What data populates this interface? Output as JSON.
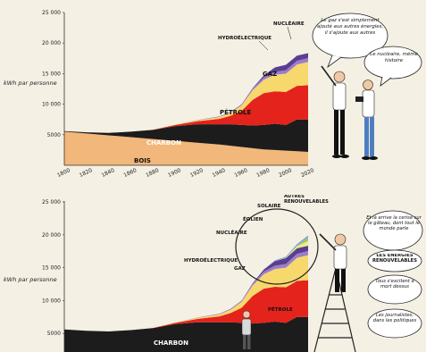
{
  "colors": {
    "background": "#f4f0e4",
    "bois": "#f2b77a",
    "charbon": "#1c1c1c",
    "petrole": "#e4231c",
    "gaz": "#f7d86c",
    "hydro": "#9b7ec9",
    "nucleaire": "#5a3e91",
    "eolien": "#f3ec8a",
    "solaire": "#a4c95a",
    "autres": "#7fa7d8"
  },
  "chart_data": [
    {
      "type": "area",
      "stacked": true,
      "xlabel": "",
      "ylabel": "kWh par personne",
      "ylim": [
        0,
        25000
      ],
      "xlim": [
        1800,
        2020
      ],
      "yticks": [
        5000,
        10000,
        15000,
        20000,
        25000
      ],
      "ytick_labels": [
        "5000",
        "10 000",
        "15 000",
        "20 000",
        "25 000"
      ],
      "xticks": [
        1800,
        1820,
        1840,
        1860,
        1880,
        1900,
        1920,
        1940,
        1960,
        1980,
        2000,
        2020
      ],
      "xtick_labels": [
        "1800",
        "1820",
        "1840",
        "1860",
        "1880",
        "1900",
        "1920",
        "1940",
        "1960",
        "1980",
        "2000",
        "2020"
      ],
      "x": [
        1800,
        1820,
        1840,
        1860,
        1880,
        1900,
        1920,
        1940,
        1950,
        1960,
        1970,
        1980,
        1990,
        2000,
        2010,
        2020
      ],
      "series": [
        {
          "name": "BOIS",
          "values": [
            5500,
            5200,
            4900,
            4600,
            4300,
            4000,
            3700,
            3400,
            3200,
            3000,
            2800,
            2600,
            2500,
            2400,
            2300,
            2200
          ]
        },
        {
          "name": "CHARBON",
          "values": [
            100,
            200,
            400,
            900,
            1500,
            2400,
            3000,
            3300,
            3500,
            3600,
            3700,
            4000,
            4300,
            4200,
            5200,
            5300
          ]
        },
        {
          "name": "PÉTROLE",
          "values": [
            0,
            0,
            0,
            0,
            20,
            200,
            500,
            900,
            1400,
            2300,
            4200,
            5200,
            5300,
            5400,
            5500,
            5600
          ]
        },
        {
          "name": "GAZ",
          "values": [
            0,
            0,
            0,
            0,
            0,
            50,
            150,
            300,
            500,
            900,
            1600,
            2200,
            2700,
            3000,
            3500,
            3800
          ]
        },
        {
          "name": "HYDROÉLECTRIQUE",
          "values": [
            0,
            0,
            0,
            0,
            0,
            0,
            50,
            100,
            150,
            200,
            300,
            400,
            500,
            550,
            600,
            650
          ]
        },
        {
          "name": "NUCLÉAIRE",
          "values": [
            0,
            0,
            0,
            0,
            0,
            0,
            0,
            0,
            0,
            0,
            50,
            300,
            700,
            900,
            850,
            800
          ]
        }
      ],
      "annotations": [
        "Le gaz s'est simplement ajouté aux autres énergies, il s'ajoute aux autres",
        "Le nucléaire, même histoire"
      ]
    },
    {
      "type": "area",
      "stacked": true,
      "xlabel": "",
      "ylabel": "kWh par personne",
      "ylim": [
        0,
        25000
      ],
      "yticks": [
        5000,
        10000,
        15000,
        20000,
        25000
      ],
      "ytick_labels": [
        "5000",
        "10 000",
        "15 000",
        "20 000",
        "25 000"
      ],
      "x": [
        1800,
        1820,
        1840,
        1860,
        1880,
        1900,
        1920,
        1940,
        1950,
        1960,
        1970,
        1980,
        1990,
        2000,
        2010,
        2020
      ],
      "series": [
        {
          "name": "CHARBON",
          "values": [
            5600,
            5400,
            5300,
            5500,
            5800,
            6400,
            6700,
            6700,
            6700,
            6600,
            6500,
            6600,
            6800,
            6600,
            7500,
            7500
          ]
        },
        {
          "name": "PÉTROLE",
          "values": [
            0,
            0,
            0,
            0,
            20,
            200,
            500,
            900,
            1400,
            2300,
            4200,
            5200,
            5300,
            5400,
            5500,
            5600
          ]
        },
        {
          "name": "GAZ",
          "values": [
            0,
            0,
            0,
            0,
            0,
            50,
            150,
            300,
            500,
            900,
            1600,
            2200,
            2700,
            3000,
            3500,
            3800
          ]
        },
        {
          "name": "HYDROÉLECTRIQUE",
          "values": [
            0,
            0,
            0,
            0,
            0,
            0,
            50,
            100,
            150,
            200,
            300,
            400,
            500,
            550,
            600,
            650
          ]
        },
        {
          "name": "NUCLÉAIRE",
          "values": [
            0,
            0,
            0,
            0,
            0,
            0,
            0,
            0,
            0,
            0,
            50,
            300,
            700,
            900,
            850,
            800
          ]
        },
        {
          "name": "ÉOLIEN",
          "values": [
            0,
            0,
            0,
            0,
            0,
            0,
            0,
            0,
            0,
            0,
            0,
            0,
            20,
            60,
            300,
            700
          ]
        },
        {
          "name": "SOLAIRE",
          "values": [
            0,
            0,
            0,
            0,
            0,
            0,
            0,
            0,
            0,
            0,
            0,
            0,
            0,
            10,
            100,
            500
          ]
        },
        {
          "name": "AUTRES RENOUVELABLES",
          "values": [
            0,
            0,
            0,
            0,
            0,
            0,
            0,
            0,
            0,
            0,
            0,
            50,
            100,
            150,
            250,
            350
          ]
        }
      ],
      "annotations": [
        "Et là arrive la cerise sur le gâteau, dont tout le monde parle",
        "LES ÉNERGIES RENOUVELABLES",
        "Tous s'excitent à mort dessus",
        "Les journalistes, dans les politiques"
      ]
    }
  ]
}
